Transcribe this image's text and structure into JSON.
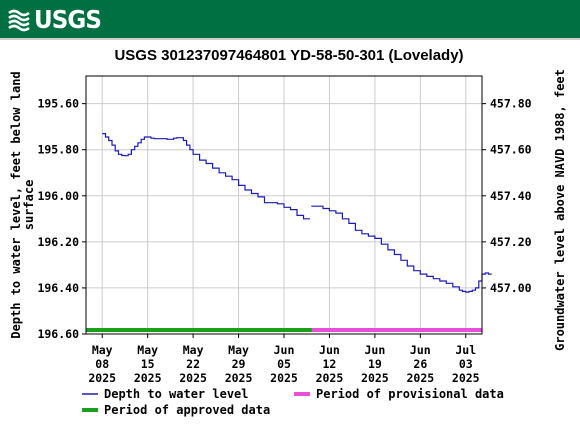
{
  "header": {
    "logo_text": "USGS",
    "background_color": "#006f41"
  },
  "chart_data": {
    "type": "line",
    "title": "USGS 301237097464801 YD-58-50-301 (Lovelady)",
    "ylabel_left": "Depth to water level, feet below land surface",
    "ylabel_right": "Groundwater level above NAVD 1988, feet",
    "x_range_days": [
      -2.5,
      58.5
    ],
    "x_axis_start_date": "2025-05-08",
    "ylim_left": [
      196.6,
      195.48
    ],
    "ylim_right": [
      456.8,
      457.92
    ],
    "grid": true,
    "x_ticks": [
      {
        "day": 0,
        "lines": [
          "May",
          "08",
          "2025"
        ]
      },
      {
        "day": 7,
        "lines": [
          "May",
          "15",
          "2025"
        ]
      },
      {
        "day": 14,
        "lines": [
          "May",
          "22",
          "2025"
        ]
      },
      {
        "day": 21,
        "lines": [
          "May",
          "29",
          "2025"
        ]
      },
      {
        "day": 28,
        "lines": [
          "Jun",
          "05",
          "2025"
        ]
      },
      {
        "day": 35,
        "lines": [
          "Jun",
          "12",
          "2025"
        ]
      },
      {
        "day": 42,
        "lines": [
          "Jun",
          "19",
          "2025"
        ]
      },
      {
        "day": 49,
        "lines": [
          "Jun",
          "26",
          "2025"
        ]
      },
      {
        "day": 56,
        "lines": [
          "Jul",
          "03",
          "2025"
        ]
      }
    ],
    "y_ticks_left": [
      {
        "value": 195.6,
        "label": "195.60"
      },
      {
        "value": 195.8,
        "label": "195.80"
      },
      {
        "value": 196.0,
        "label": "196.00"
      },
      {
        "value": 196.2,
        "label": "196.20"
      },
      {
        "value": 196.4,
        "label": "196.40"
      },
      {
        "value": 196.6,
        "label": "196.60"
      }
    ],
    "y_ticks_right": [
      {
        "value": 457.8,
        "label": "457.80"
      },
      {
        "value": 457.6,
        "label": "457.60"
      },
      {
        "value": 457.4,
        "label": "457.40"
      },
      {
        "value": 457.2,
        "label": "457.20"
      },
      {
        "value": 457.0,
        "label": "457.00"
      }
    ],
    "series": [
      {
        "name": "Depth to water level",
        "color": "#1c1cb4",
        "segments": [
          {
            "x": [
              0,
              0.5,
              1,
              1.5,
              2,
              2.5,
              3,
              3.5,
              4,
              4.5,
              5,
              5.5,
              6,
              6.5,
              7,
              7.5,
              8,
              9,
              10,
              11,
              11.5,
              12,
              12.5,
              13,
              13.5,
              14,
              15,
              16,
              17,
              18,
              19,
              20,
              21,
              22,
              23,
              24,
              25,
              26,
              27,
              28,
              29,
              30,
              31,
              32
            ],
            "y": [
              195.73,
              195.745,
              195.76,
              195.78,
              195.805,
              195.82,
              195.825,
              195.826,
              195.82,
              195.8,
              195.785,
              195.77,
              195.755,
              195.745,
              195.745,
              195.75,
              195.752,
              195.752,
              195.755,
              195.75,
              195.748,
              195.748,
              195.76,
              195.78,
              195.8,
              195.82,
              195.845,
              195.86,
              195.88,
              195.9,
              195.915,
              195.93,
              195.955,
              195.975,
              195.99,
              196.005,
              196.03,
              196.03,
              196.035,
              196.05,
              196.06,
              196.085,
              196.1,
              196.1
            ]
          },
          {
            "x": [
              32.2,
              33,
              34,
              35,
              36,
              37,
              38,
              39,
              40,
              41,
              42,
              43,
              44,
              45,
              46,
              47,
              48,
              49,
              50,
              51,
              52,
              53,
              54,
              55,
              55.5,
              56,
              56.5,
              57,
              57.5,
              58,
              58.5,
              59,
              59.5,
              60
            ],
            "y": [
              196.045,
              196.045,
              196.055,
              196.065,
              196.075,
              196.1,
              196.12,
              196.15,
              196.165,
              196.175,
              196.185,
              196.21,
              196.235,
              196.255,
              196.28,
              196.305,
              196.325,
              196.34,
              196.35,
              196.36,
              196.37,
              196.38,
              196.395,
              196.41,
              196.415,
              196.418,
              196.415,
              196.41,
              196.4,
              196.37,
              196.34,
              196.335,
              196.34,
              196.34
            ]
          }
        ]
      }
    ],
    "periods": [
      {
        "name": "Period of approved data",
        "color": "#1a9f1a",
        "x": [
          -2.5,
          32.3
        ]
      },
      {
        "name": "Period of provisional data",
        "color": "#e84fd8",
        "x": [
          32.3,
          58.5
        ]
      }
    ],
    "legend": [
      {
        "label": "Depth to water level",
        "color": "#1c1cb4",
        "style": "thin"
      },
      {
        "label": "Period of provisional data",
        "color": "#e84fd8",
        "style": "thick"
      },
      {
        "label": "Period of approved data",
        "color": "#1a9f1a",
        "style": "thick"
      }
    ],
    "legend_placement": "bottom"
  }
}
